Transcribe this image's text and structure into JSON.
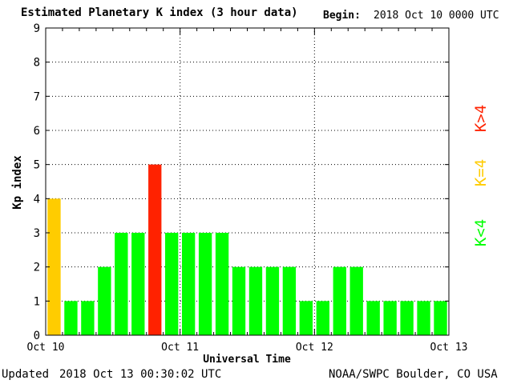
{
  "header": {
    "title": "Estimated Planetary K index (3 hour data)",
    "begin_label": "Begin:",
    "begin_date": "2018 Oct 10 0000 UTC"
  },
  "footer": {
    "updated_label": "Updated",
    "updated_value": "2018 Oct 13 00:30:02 UTC",
    "credit": "NOAA/SWPC Boulder, CO USA"
  },
  "legend": {
    "high": "K>4",
    "mid": "K=4",
    "low": "K<4"
  },
  "colors": {
    "low": "#00ff00",
    "mid": "#ffcc00",
    "high": "#ff2200",
    "grid": "#000000"
  },
  "chart_data": {
    "type": "bar",
    "title": "Estimated Planetary K index (3 hour data)",
    "xlabel": "Universal Time",
    "ylabel": "Kp index",
    "ylim": [
      0,
      9
    ],
    "yticks": [
      "0",
      "1",
      "2",
      "3",
      "4",
      "5",
      "6",
      "7",
      "8",
      "9"
    ],
    "xticks": [
      "Oct 10",
      "Oct 11",
      "Oct 12",
      "Oct 13"
    ],
    "grid": true,
    "legend_position": "right",
    "values": [
      4,
      1,
      1,
      2,
      3,
      3,
      5,
      3,
      3,
      3,
      3,
      2,
      2,
      2,
      2,
      1,
      1,
      2,
      2,
      1,
      1,
      1,
      1,
      1
    ]
  }
}
